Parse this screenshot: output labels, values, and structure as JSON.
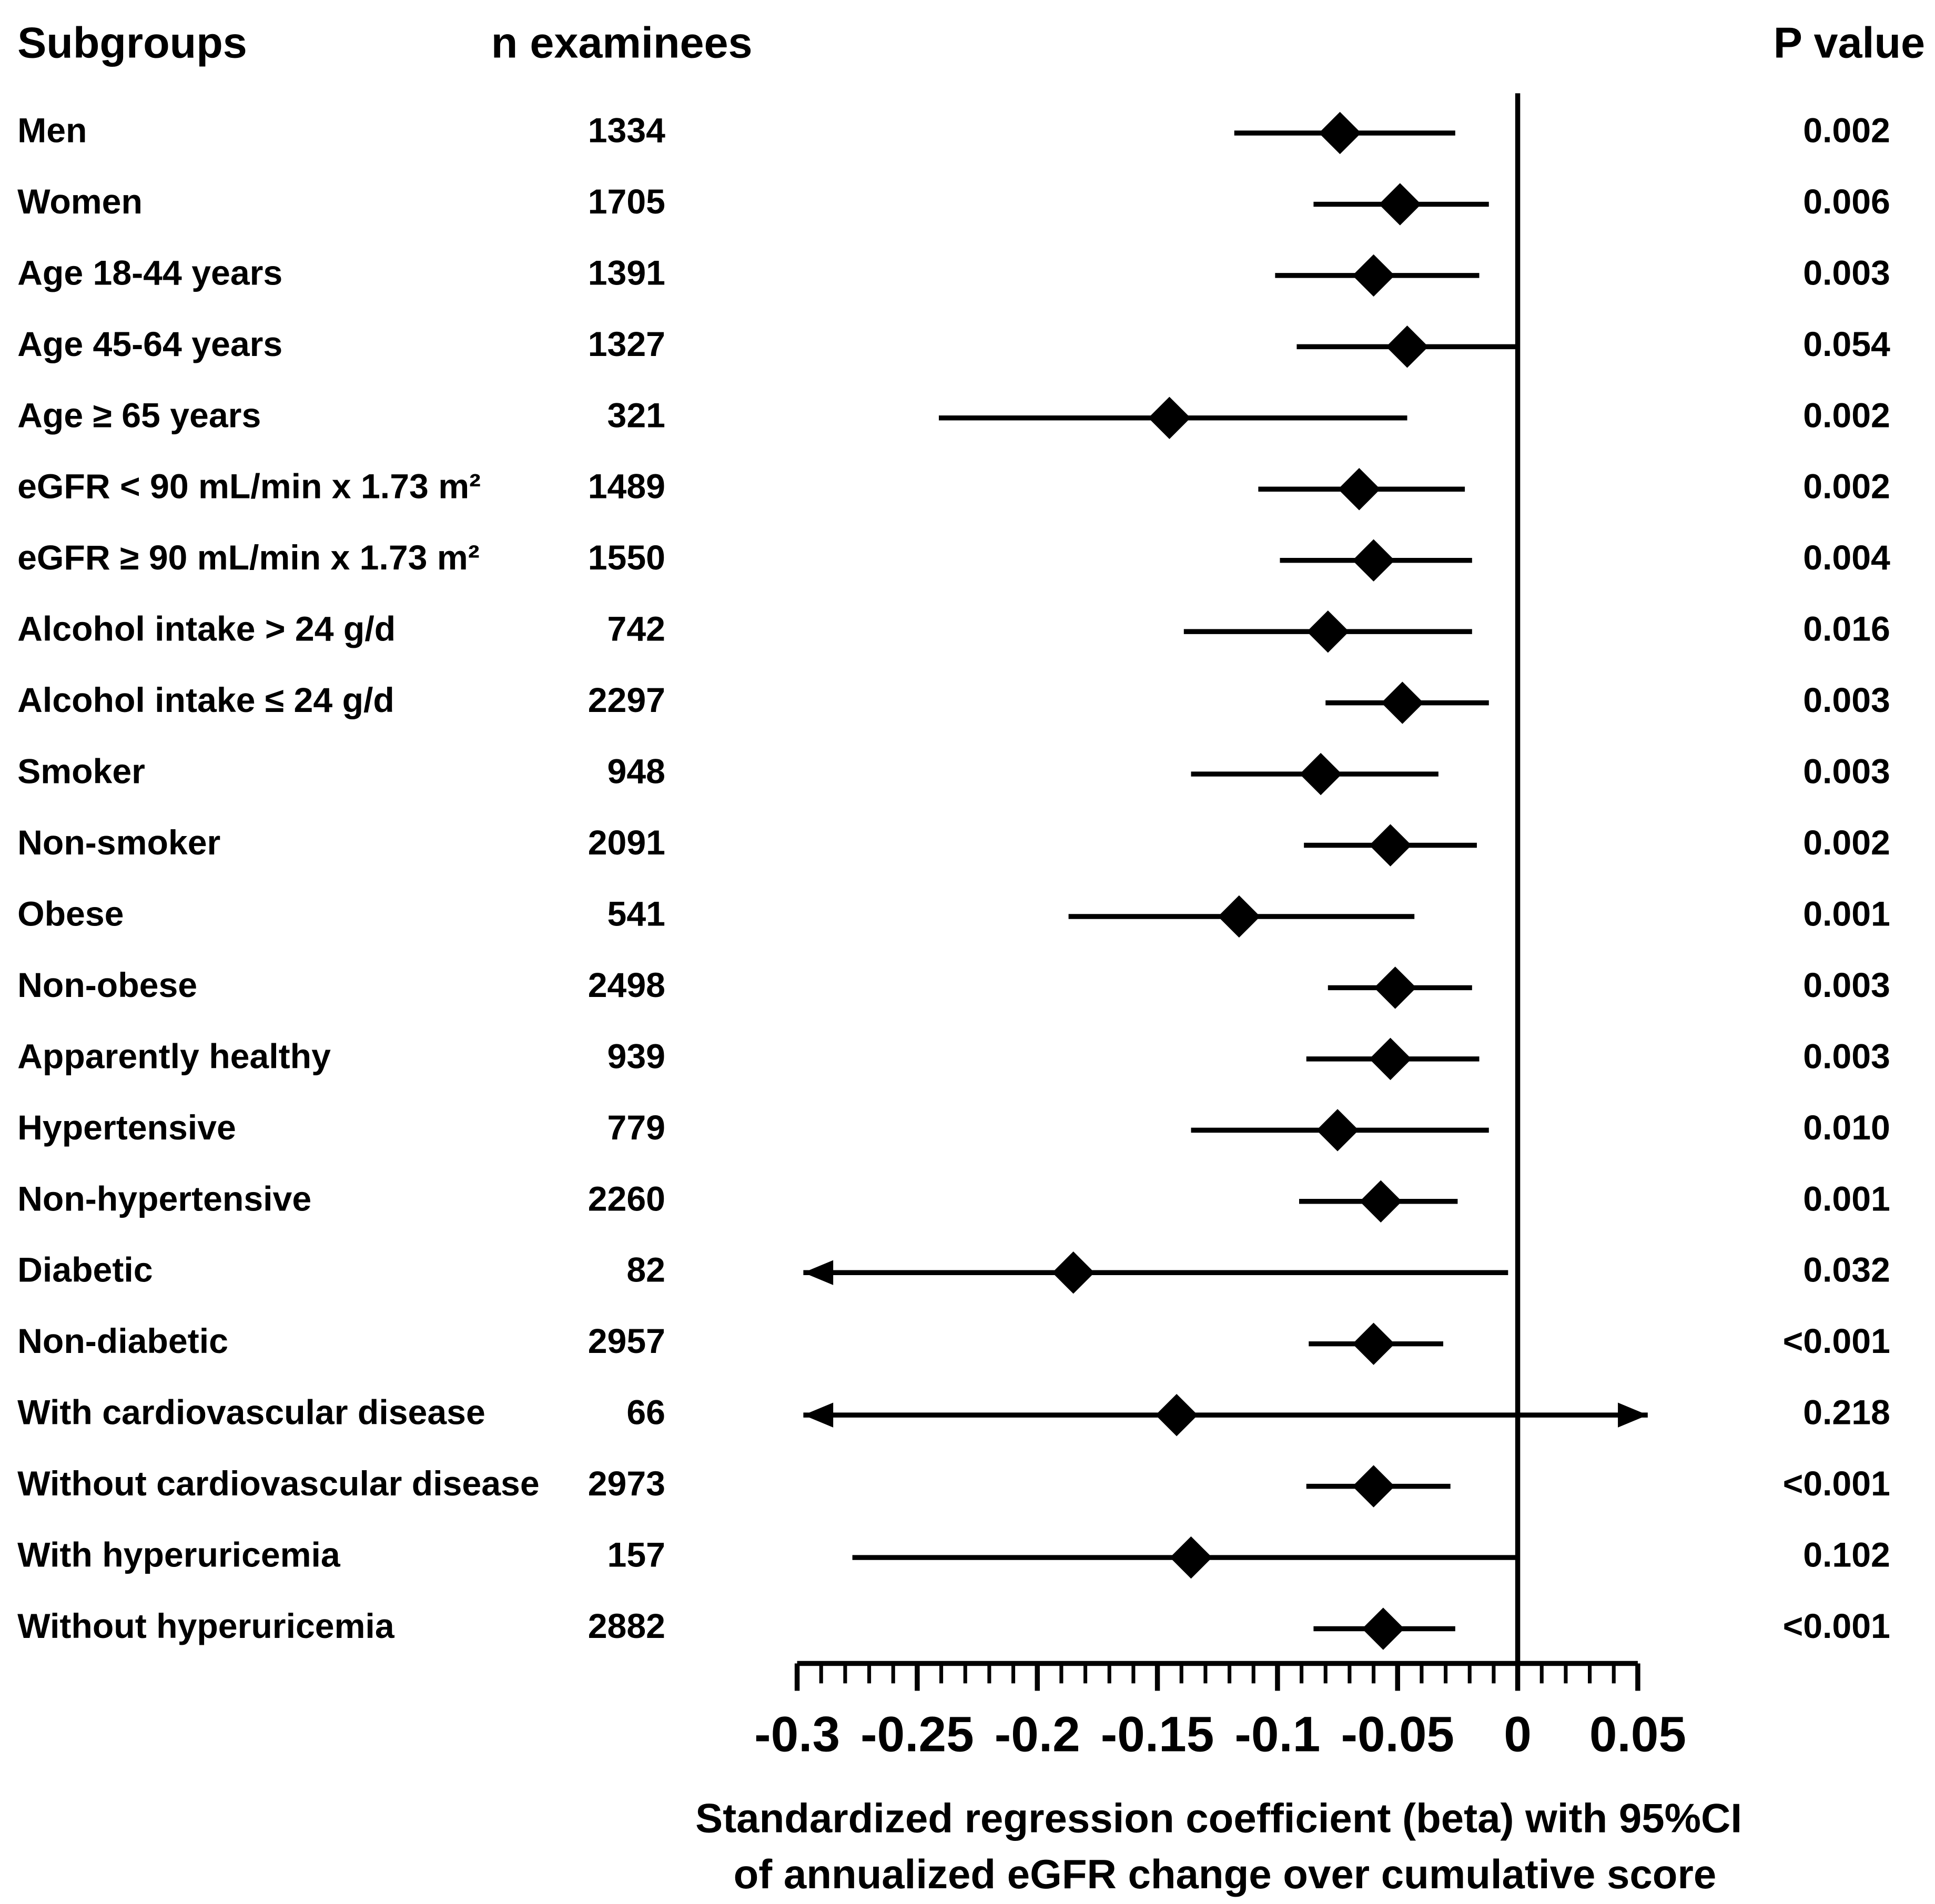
{
  "chart_data": {
    "type": "forest",
    "headers": {
      "subgroups": "Subgroups",
      "n": "n examinees",
      "p": "P value"
    },
    "categories": [
      "Men",
      "Women",
      "Age 18-44 years",
      "Age 45-64 years",
      "Age ≥ 65 years",
      "eGFR < 90 mL/min x 1.73 m²",
      "eGFR ≥ 90 mL/min x 1.73 m²",
      "Alcohol intake > 24 g/d",
      "Alcohol intake ≤ 24 g/d",
      "Smoker",
      "Non-smoker",
      "Obese",
      "Non-obese",
      "Apparently healthy",
      "Hypertensive",
      "Non-hypertensive",
      "Diabetic",
      "Non-diabetic",
      "With cardiovascular disease",
      "Without cardiovascular disease",
      "With hyperuricemia",
      "Without hyperuricemia"
    ],
    "n": [
      1334,
      1705,
      1391,
      1327,
      321,
      1489,
      1550,
      742,
      2297,
      948,
      2091,
      541,
      2498,
      939,
      779,
      2260,
      82,
      2957,
      66,
      2973,
      157,
      2882
    ],
    "values": [
      -0.074,
      -0.049,
      -0.06,
      -0.046,
      -0.145,
      -0.066,
      -0.06,
      -0.079,
      -0.048,
      -0.082,
      -0.053,
      -0.116,
      -0.051,
      -0.053,
      -0.075,
      -0.057,
      -0.185,
      -0.06,
      -0.142,
      -0.06,
      -0.136,
      -0.056
    ],
    "ci_low": [
      -0.118,
      -0.085,
      -0.101,
      -0.092,
      -0.241,
      -0.108,
      -0.099,
      -0.139,
      -0.08,
      -0.136,
      -0.089,
      -0.187,
      -0.079,
      -0.088,
      -0.136,
      -0.091,
      null,
      -0.087,
      null,
      -0.088,
      -0.277,
      -0.085
    ],
    "ci_high": [
      -0.026,
      -0.012,
      -0.016,
      -0.001,
      -0.046,
      -0.022,
      -0.019,
      -0.019,
      -0.012,
      -0.033,
      -0.017,
      -0.043,
      -0.019,
      -0.016,
      -0.012,
      -0.025,
      -0.004,
      -0.031,
      null,
      -0.028,
      -0.001,
      -0.026
    ],
    "p_values": [
      "0.002",
      "0.006",
      "0.003",
      "0.054",
      "0.002",
      "0.002",
      "0.004",
      "0.016",
      "0.003",
      "0.003",
      "0.002",
      "0.001",
      "0.003",
      "0.003",
      "0.010",
      "0.001",
      "0.032",
      "<0.001",
      "0.218",
      "<0.001",
      "0.102",
      "<0.001"
    ],
    "xlim": [
      -0.3,
      0.05
    ],
    "xticks": [
      -0.3,
      -0.25,
      -0.2,
      -0.15,
      -0.1,
      -0.05,
      0,
      0.05
    ],
    "minor_tick_step": 0.01,
    "reference_line": 0,
    "color": "#000000",
    "xlabel": [
      "Standardized regression coefficient (beta) with 95%CI",
      "of annualized eGFR change over cumulative score"
    ]
  }
}
